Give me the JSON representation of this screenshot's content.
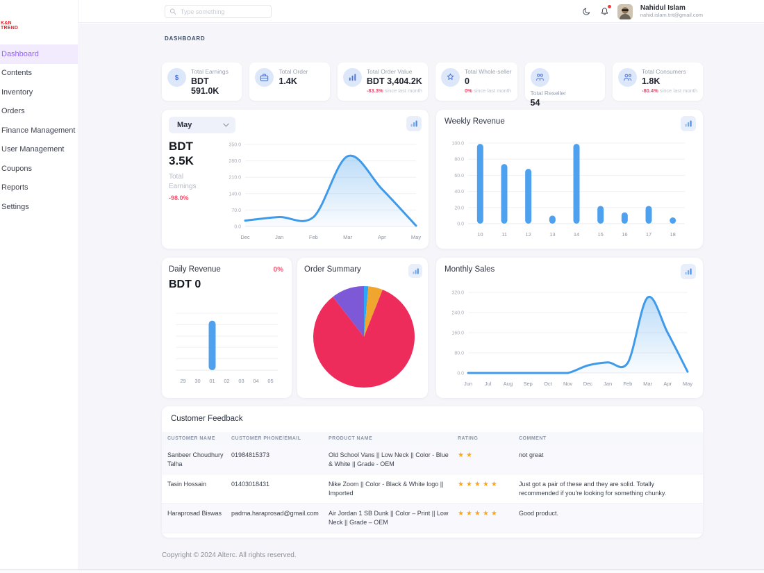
{
  "logo": {
    "line1": "K&N",
    "line2": "TREND"
  },
  "topbar": {
    "search_placeholder": "Type something",
    "user": {
      "name": "Nahidul Islam",
      "email": "nahid.islam.tnt@gmail.com"
    }
  },
  "sidebar": {
    "items": [
      {
        "label": "Dashboard",
        "active": true
      },
      {
        "label": "Contents",
        "active": false
      },
      {
        "label": "Inventory",
        "active": false
      },
      {
        "label": "Orders",
        "active": false
      },
      {
        "label": "Finance Management",
        "active": false
      },
      {
        "label": "User Management",
        "active": false
      },
      {
        "label": "Coupons",
        "active": false
      },
      {
        "label": "Reports",
        "active": false
      },
      {
        "label": "Settings",
        "active": false
      }
    ]
  },
  "breadcrumb": "DASHBOARD",
  "stats": [
    {
      "label": "Total Earnings",
      "value": "BDT 591.0K",
      "icon": "dollar",
      "delta": null,
      "delta_note": null
    },
    {
      "label": "Total Order",
      "value": "1.4K",
      "icon": "briefcase",
      "delta": null,
      "delta_note": null
    },
    {
      "label": "Total Order Value",
      "value": "BDT 3,404.2K",
      "icon": "bar-chart",
      "delta": "-83.3%",
      "delta_note": " since last month"
    },
    {
      "label": "Total Whole-seller",
      "value": "0",
      "icon": "badge-star",
      "delta": "0%",
      "delta_note": " since last month"
    },
    {
      "label": "Total Reseller",
      "value": "54",
      "icon": "team",
      "delta": null,
      "delta_note": null,
      "wrapped": true
    },
    {
      "label": "Total Consumers",
      "value": "1.8K",
      "icon": "users",
      "delta": "-80.4%",
      "delta_note": " since last month"
    }
  ],
  "earnings_panel": {
    "period": "May",
    "currency": "BDT",
    "amount": "3.5K",
    "label1": "Total",
    "label2": "Earnings",
    "delta": "-98.0%"
  },
  "daily_panel": {
    "delta": "0%",
    "value": "BDT 0"
  },
  "chart_data": [
    {
      "id": "earnings",
      "type": "area",
      "title": "Total Earnings (May)",
      "x": [
        "Dec",
        "Jan",
        "Feb",
        "Mar",
        "Apr",
        "May"
      ],
      "values": [
        25,
        40,
        40,
        300,
        160,
        3
      ],
      "ylim": [
        0,
        350
      ],
      "yticks": [
        350,
        280,
        210,
        140,
        70,
        0
      ],
      "grid": "horizontal",
      "legend": "none",
      "line_color": "#3f9bea"
    },
    {
      "id": "weekly",
      "type": "bar",
      "title": "Weekly Revenue",
      "categories": [
        "10",
        "11",
        "12",
        "13",
        "14",
        "15",
        "16",
        "17",
        "18"
      ],
      "values": [
        99,
        74,
        68,
        10,
        99,
        22,
        14,
        22,
        3
      ],
      "ylim": [
        0,
        100
      ],
      "yticks": [
        100,
        80,
        60,
        40,
        20,
        0
      ],
      "grid": "horizontal",
      "legend": "none",
      "bar_color": "#4da1ee"
    },
    {
      "id": "daily",
      "type": "bar",
      "title": "Daily Revenue",
      "categories": [
        "29",
        "30",
        "01",
        "02",
        "03",
        "04",
        "05"
      ],
      "values": [
        0,
        0,
        87,
        0,
        0,
        0,
        0
      ],
      "ylim": [
        0,
        100
      ],
      "yticks": [
        100,
        80,
        60,
        40,
        20,
        0
      ],
      "grid": "horizontal",
      "legend": "none",
      "bar_color": "#4da1ee",
      "show_y_labels": false
    },
    {
      "id": "summary",
      "type": "pie",
      "title": "Order Summary",
      "values": [
        1.4,
        4.6,
        83.5,
        10.5
      ],
      "colors": [
        "#2aa7f8",
        "#f0a52e",
        "#ee2c5c",
        "#7d59d8"
      ],
      "legend": "none"
    },
    {
      "id": "monthly",
      "type": "area",
      "title": "Monthly Sales",
      "x": [
        "Jun",
        "Jul",
        "Aug",
        "Sep",
        "Oct",
        "Nov",
        "Dec",
        "Jan",
        "Feb",
        "Mar",
        "Apr",
        "May"
      ],
      "values": [
        0,
        0,
        0,
        0,
        0,
        0,
        30,
        42,
        40,
        300,
        160,
        5
      ],
      "ylim": [
        0,
        320
      ],
      "yticks": [
        320,
        240,
        160,
        80,
        0
      ],
      "grid": "horizontal",
      "legend": "none",
      "line_color": "#3f9bea"
    }
  ],
  "feedback": {
    "title": "Customer Feedback",
    "columns": [
      "CUSTOMER NAME",
      "CUSTOMER PHONE/EMAIL",
      "PRODUCT NAME",
      "RATING",
      "COMMENT"
    ],
    "rows": [
      {
        "name": "Sanbeer Choudhury Talha",
        "contact": "01984815373",
        "product": "Old School Vans || Low Neck || Color - Blue & White || Grade - OEM",
        "rating": 2,
        "comment": "not great"
      },
      {
        "name": "Tasin Hossain",
        "contact": "01403018431",
        "product": "Nike Zoom || Color - Black & White logo || Imported",
        "rating": 5,
        "comment": "Just got a pair of these and they are solid. Totally recommended if you're looking for something chunky."
      },
      {
        "name": "Haraprosad Biswas",
        "contact": "padma.haraprosad@gmail.com",
        "product": "Air Jordan 1 SB Dunk || Color – Print || Low Neck || Grade – OEM",
        "rating": 5,
        "comment": "Good product."
      }
    ]
  },
  "footer": "Copyright © 2024 Alterc. All rights reserved."
}
